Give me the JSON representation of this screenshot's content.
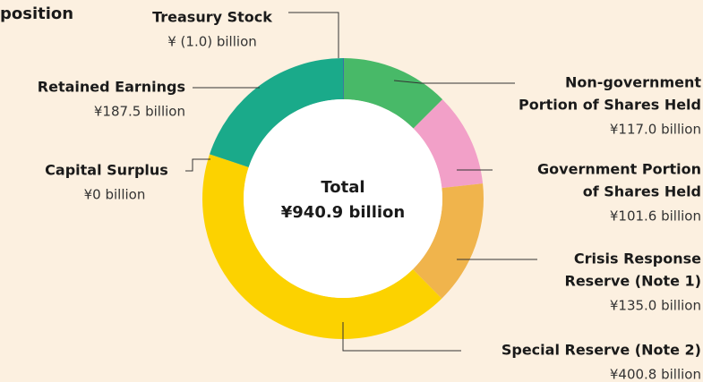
{
  "chart_data": {
    "type": "donut",
    "title": "position",
    "center_label": [
      "Total",
      "¥940.9 billion"
    ],
    "categories": [
      [
        "Treasury Stock"
      ],
      [
        "Non-government",
        "Portion of Shares Held"
      ],
      [
        "Government Portion",
        "of Shares Held"
      ],
      [
        "Crisis Response",
        "Reserve (Note 1)"
      ],
      [
        "Special Reserve (Note 2)"
      ],
      [
        "Capital Surplus"
      ],
      [
        "Retained Earnings"
      ]
    ],
    "values": [
      -1.0,
      117.0,
      101.6,
      135.0,
      400.8,
      0,
      187.5
    ],
    "value_labels": [
      "¥ (1.0) billion",
      "¥117.0 billion",
      "¥101.6 billion",
      "¥135.0 billion",
      "¥400.8 billion",
      "¥0 billion",
      "¥187.5 billion"
    ],
    "colors": [
      "#3a6ea8",
      "#48b968",
      "#f2a0c8",
      "#f0b44c",
      "#fcd200",
      "#1aaa8a",
      "#1aaa8a"
    ]
  }
}
